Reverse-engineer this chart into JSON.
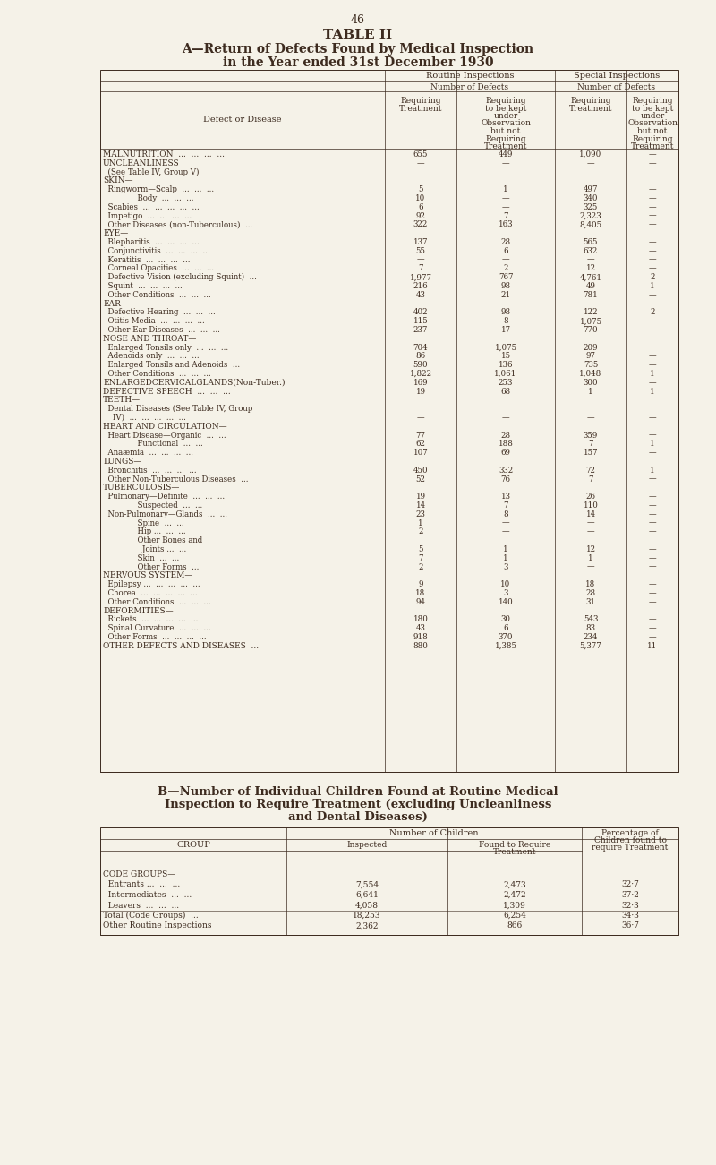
{
  "page_num": "46",
  "title1": "TABLE II",
  "title2": "A—Return of Defects Found by Medical Inspection",
  "title3": "in the Year ended 31st December 1930",
  "bg_color": "#f5f2e8",
  "text_color": "#3d2b1f",
  "rows": [
    [
      "MALNUTRITION  ...  ...  ...  ...",
      "655",
      "449",
      "1,090",
      "—"
    ],
    [
      "UNCLEANLINESS",
      "—",
      "—",
      "—",
      "—"
    ],
    [
      "  (See Table IV, Group V)",
      "",
      "",
      "",
      ""
    ],
    [
      "SKIN—",
      "",
      "",
      "",
      ""
    ],
    [
      "  Ringworm—Scalp  ...  ...  ...",
      "5",
      "1",
      "497",
      "—"
    ],
    [
      "              Body  ...  ...  ...",
      "10",
      "—",
      "340",
      "—"
    ],
    [
      "  Scabies  ...  ...  ...  ...  ...",
      "6",
      "—",
      "325",
      "—"
    ],
    [
      "  Impetigo  ...  ...  ...  ...",
      "92",
      "7",
      "2,323",
      "—"
    ],
    [
      "  Other Diseases (non-Tuberculous)  ...",
      "322",
      "163",
      "8,405",
      "—"
    ],
    [
      "EYE—",
      "",
      "",
      "",
      ""
    ],
    [
      "  Blepharitis  ...  ...  ...  ...",
      "137",
      "28",
      "565",
      "—"
    ],
    [
      "  Conjunctivitis  ...  ...  ...  ...",
      "55",
      "6",
      "632",
      "—"
    ],
    [
      "  Keratitis  ...  ...  ...  ...",
      "—",
      "—",
      "—",
      "—"
    ],
    [
      "  Corneal Opacities  ...  ...  ...",
      "7",
      "2",
      "12",
      "—"
    ],
    [
      "  Defective Vision (excluding Squint)  ...",
      "1,977",
      "767",
      "4,761",
      "2"
    ],
    [
      "  Squint  ...  ...  ...  ...",
      "216",
      "98",
      "49",
      "1"
    ],
    [
      "  Other Conditions  ...  ...  ...",
      "43",
      "21",
      "781",
      "—"
    ],
    [
      "EAR—",
      "",
      "",
      "",
      ""
    ],
    [
      "  Defective Hearing  ...  ...  ...",
      "402",
      "98",
      "122",
      "2"
    ],
    [
      "  Otitis Media  ...  ...  ...  ...",
      "115",
      "8",
      "1,075",
      "—"
    ],
    [
      "  Other Ear Diseases  ...  ...  ...",
      "237",
      "17",
      "770",
      "—"
    ],
    [
      "NOSE AND THROAT—",
      "",
      "",
      "",
      ""
    ],
    [
      "  Enlarged Tonsils only  ...  ...  ...",
      "704",
      "1,075",
      "209",
      "—"
    ],
    [
      "  Adenoids only  ...  ...  ...",
      "86",
      "15",
      "97",
      "—"
    ],
    [
      "  Enlarged Tonsils and Adenoids  ...",
      "590",
      "136",
      "735",
      "—"
    ],
    [
      "  Other Conditions  ...  ...  ...",
      "1,822",
      "1,061",
      "1,048",
      "1"
    ],
    [
      "ENLARGEDCERVICALGLANDS(Non-Tuber.)",
      "169",
      "253",
      "300",
      "—"
    ],
    [
      "DEFECTIVE SPEECH  ...  ...  ...",
      "19",
      "68",
      "1",
      "1"
    ],
    [
      "TEETH—",
      "",
      "",
      "",
      ""
    ],
    [
      "  Dental Diseases (See Table IV, Group",
      "",
      "",
      "",
      ""
    ],
    [
      "    IV)  ...  ...  ...  ...  ...",
      "—",
      "—",
      "—",
      "—"
    ],
    [
      "HEART AND CIRCULATION—",
      "",
      "",
      "",
      ""
    ],
    [
      "  Heart Disease—Organic  ...  ...",
      "77",
      "28",
      "359",
      "—"
    ],
    [
      "              Functional  ...  ...",
      "62",
      "188",
      "7",
      "1"
    ],
    [
      "  Anaæmia  ...  ...  ...  ...",
      "107",
      "69",
      "157",
      "—"
    ],
    [
      "LUNGS—",
      "",
      "",
      "",
      ""
    ],
    [
      "  Bronchitis  ...  ...  ...  ...",
      "450",
      "332",
      "72",
      "1"
    ],
    [
      "  Other Non-Tuberculous Diseases  ...",
      "52",
      "76",
      "7",
      "—"
    ],
    [
      "TUBERCULOSIS—",
      "",
      "",
      "",
      ""
    ],
    [
      "  Pulmonary—Definite  ...  ...  ...",
      "19",
      "13",
      "26",
      "—"
    ],
    [
      "              Suspected  ...  ...",
      "14",
      "7",
      "110",
      "—"
    ],
    [
      "  Non-Pulmonary—Glands  ...  ...",
      "23",
      "8",
      "14",
      "—"
    ],
    [
      "              Spine  ...  ...",
      "1",
      "—",
      "—",
      "—"
    ],
    [
      "              Hip ...  ...  ...",
      "2",
      "—",
      "—",
      "—"
    ],
    [
      "              Other Bones and",
      "",
      "",
      "",
      ""
    ],
    [
      "                Joints ...  ...",
      "5",
      "1",
      "12",
      "—"
    ],
    [
      "              Skin  ...  ...",
      "7",
      "1",
      "1",
      "—"
    ],
    [
      "              Other Forms  ...",
      "2",
      "3",
      "—",
      "—"
    ],
    [
      "NERVOUS SYSTEM—",
      "",
      "",
      "",
      ""
    ],
    [
      "  Epilepsy ...  ...  ...  ...  ...",
      "9",
      "10",
      "18",
      "—"
    ],
    [
      "  Chorea  ...  ...  ...  ...  ...",
      "18",
      "3",
      "28",
      "—"
    ],
    [
      "  Other Conditions  ...  ...  ...",
      "94",
      "140",
      "31",
      "—"
    ],
    [
      "DEFORMITIES—",
      "",
      "",
      "",
      ""
    ],
    [
      "  Rickets  ...  ...  ...  ...  ...",
      "180",
      "30",
      "543",
      "—"
    ],
    [
      "  Spinal Curvature  ...  ...  ...",
      "43",
      "6",
      "83",
      "—"
    ],
    [
      "  Other Forms  ...  ...  ...  ...",
      "918",
      "370",
      "234",
      "—"
    ],
    [
      "OTHER DEFECTS AND DISEASES  ...",
      "880",
      "1,385",
      "5,377",
      "11"
    ]
  ],
  "title_B": "B—Number of Individual Children Found at Routine Medical\nInspection to Require Treatment (excluding Uncleanliness\nand Dental Diseases)",
  "table_b_rows": [
    [
      "CODE GROUPS—",
      "",
      "",
      ""
    ],
    [
      "  Entrants ...  ...  ...",
      "7,554",
      "2,473",
      "32·7"
    ],
    [
      "  Intermediates  ...  ...",
      "6,641",
      "2,472",
      "37·2"
    ],
    [
      "  Leavers  ...  ...  ...",
      "4,058",
      "1,309",
      "32·3"
    ],
    [
      "Total (Code Groups)  ...",
      "18,253",
      "6,254",
      "34·3"
    ],
    [
      "Other Routine Inspections",
      "2,362",
      "866",
      "36·7"
    ]
  ]
}
